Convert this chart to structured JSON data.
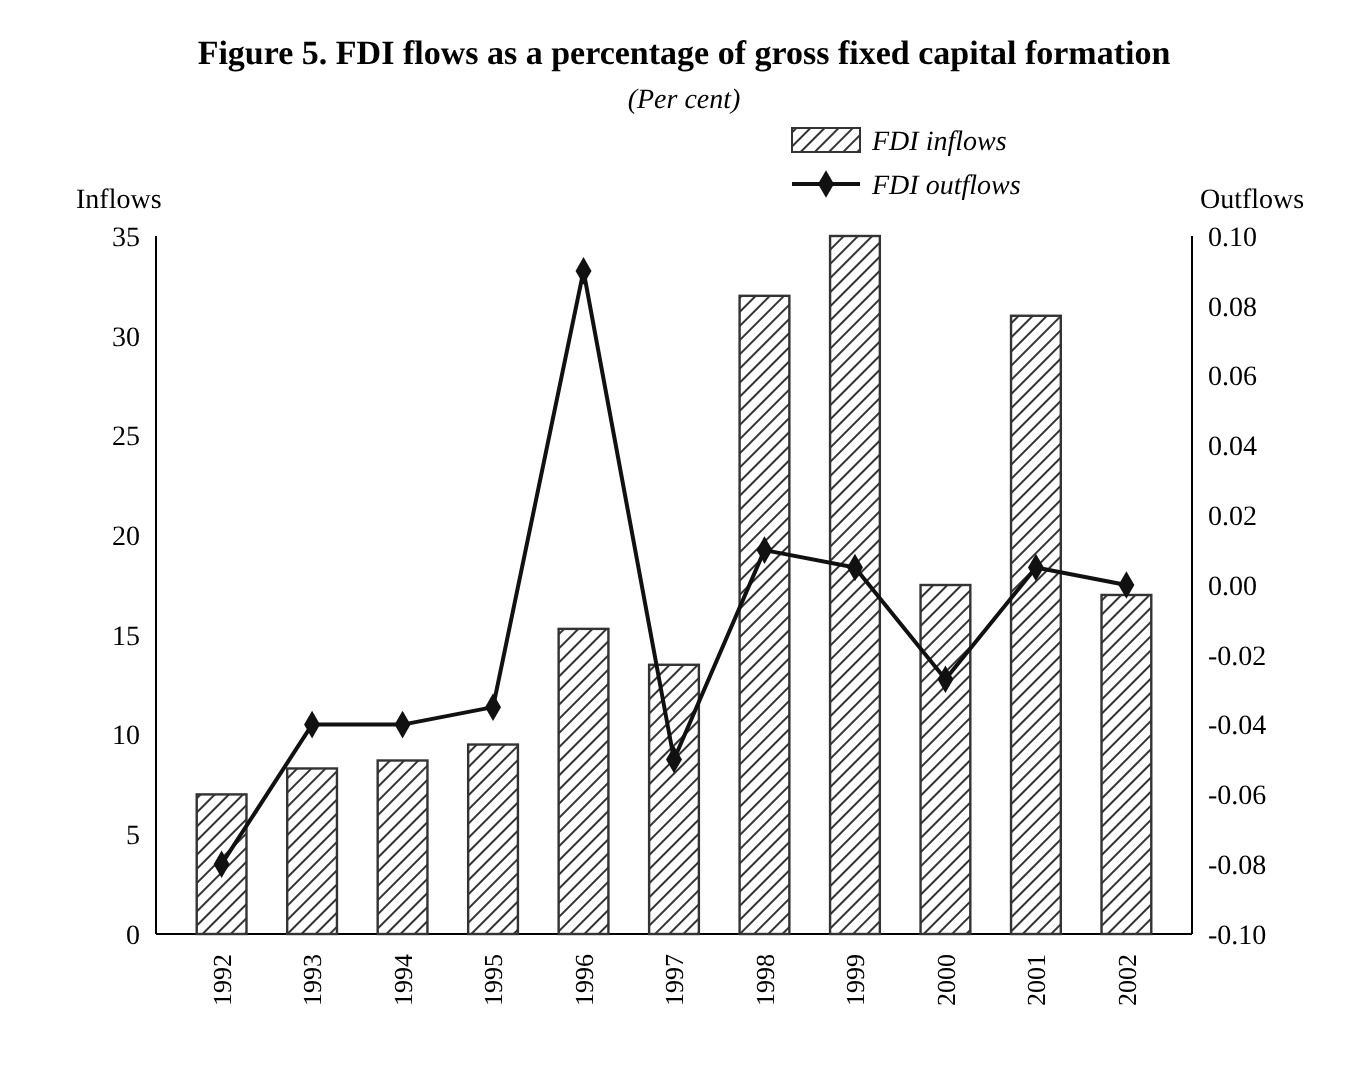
{
  "chart_data": {
    "type": "bar",
    "title": "Figure 5. FDI flows as a percentage of gross fixed capital formation",
    "subtitle": "(Per cent)",
    "ylabel": "Inflows",
    "y2label": "Outflows",
    "categories": [
      "1992",
      "1993",
      "1994",
      "1995",
      "1996",
      "1997",
      "1998",
      "1999",
      "2000",
      "2001",
      "2002"
    ],
    "series": [
      {
        "name": "FDI inflows",
        "color": "#333333",
        "values": [
          7,
          8.3,
          8.7,
          9.5,
          15.3,
          13.5,
          32,
          35,
          17.5,
          31,
          17
        ]
      },
      {
        "name": "FDI outflows",
        "type": "line",
        "axis": "y2",
        "color": "#111111",
        "marker": "diamond",
        "values": [
          -0.08,
          -0.04,
          -0.04,
          -0.035,
          0.09,
          -0.05,
          0.01,
          0.005,
          -0.027,
          0.005,
          0
        ]
      }
    ],
    "ylim": [
      0,
      35
    ],
    "yticks": [
      0,
      5,
      10,
      15,
      20,
      25,
      30,
      35
    ],
    "y2lim": [
      -0.1,
      0.1
    ],
    "y2ticks": [
      {
        "value": -0.1,
        "label": "-0.10"
      },
      {
        "value": -0.08,
        "label": "-0.08"
      },
      {
        "value": -0.06,
        "label": "-0.06"
      },
      {
        "value": -0.04,
        "label": "-0.04"
      },
      {
        "value": -0.02,
        "label": "-0.02"
      },
      {
        "value": 0,
        "label": "0.00"
      },
      {
        "value": 0.02,
        "label": "0.02"
      },
      {
        "value": 0.04,
        "label": "0.04"
      },
      {
        "value": 0.06,
        "label": "0.06"
      },
      {
        "value": 0.08,
        "label": "0.08"
      },
      {
        "value": 0.1,
        "label": "0.10"
      }
    ],
    "legend": "top right",
    "grid": false
  }
}
